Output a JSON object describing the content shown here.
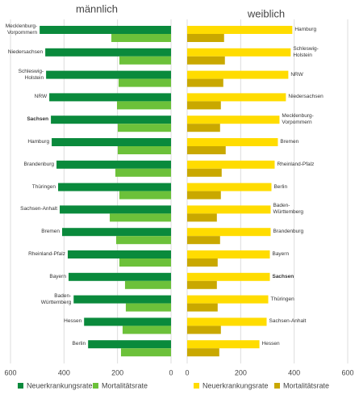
{
  "chart_data": [
    {
      "type": "hbar",
      "title": "männlich",
      "categories": [
        "Mecklenburg-Vorpommern",
        "Niedersachsen",
        "Schleswig-Holstein",
        "NRW",
        "Sachsen",
        "Hamburg",
        "Brandenburg",
        "Thüringen",
        "Sachsen-Anhalt",
        "Bremen",
        "Rheinland-Pfalz",
        "Bayern",
        "Baden-Württemberg",
        "Hessen",
        "Berlin"
      ],
      "series": [
        {
          "name": "Neuerkrankungsrate",
          "color": "#0a8a3c",
          "values": [
            491,
            470,
            467,
            455,
            449,
            446,
            428,
            422,
            416,
            407,
            386,
            383,
            364,
            325,
            310
          ]
        },
        {
          "name": "Mortalitätsrate",
          "color": "#6cc13a",
          "values": [
            223,
            193,
            196,
            202,
            199,
            199,
            208,
            193,
            229,
            205,
            193,
            172,
            169,
            181,
            187
          ]
        }
      ],
      "xlim": [
        600,
        0
      ],
      "xticks": [
        600,
        400,
        200,
        0
      ],
      "grid": true,
      "bold_index": 4
    },
    {
      "type": "hbar",
      "title": "weiblich",
      "categories": [
        "Hamburg",
        "Schleswig-Holstein",
        "NRW",
        "Niedersachsen",
        "Mecklenburg-Vorpommern",
        "Bremen",
        "Rheinland-Pfalz",
        "Berlin",
        "Baden-Württemberg",
        "Brandenburg",
        "Bayern",
        "Sachsen",
        "Thüringen",
        "Sachsen-Anhalt",
        "Hessen"
      ],
      "series": [
        {
          "name": "Neuerkrankungsrate",
          "color": "#ffdc00",
          "values": [
            393,
            387,
            378,
            369,
            345,
            339,
            327,
            315,
            312,
            312,
            309,
            309,
            303,
            297,
            270
          ]
        },
        {
          "name": "Mortalitätsrate",
          "color": "#c9a800",
          "values": [
            138,
            141,
            135,
            126,
            123,
            144,
            129,
            126,
            111,
            123,
            114,
            111,
            114,
            126,
            120
          ]
        }
      ],
      "xlim": [
        0,
        600
      ],
      "xticks": [
        0,
        200,
        400,
        600
      ],
      "grid": true,
      "bold_index": 11
    }
  ]
}
